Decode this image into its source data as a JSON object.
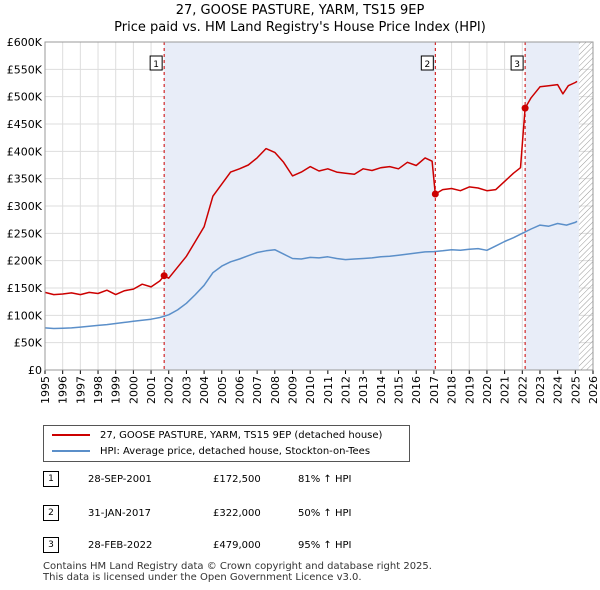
{
  "chart_data": {
    "type": "line",
    "title": "27, GOOSE PASTURE, YARM, TS15 9EP",
    "subtitle": "Price paid vs. HM Land Registry's House Price Index (HPI)",
    "xlim": [
      1995,
      2026
    ],
    "ylim": [
      0,
      600000
    ],
    "x_ticks": [
      1995,
      1996,
      1997,
      1998,
      1999,
      2000,
      2001,
      2002,
      2003,
      2004,
      2005,
      2006,
      2007,
      2008,
      2009,
      2010,
      2011,
      2012,
      2013,
      2014,
      2015,
      2016,
      2017,
      2018,
      2019,
      2020,
      2021,
      2022,
      2023,
      2024,
      2025,
      2026
    ],
    "x_tick_labels": [
      "1995",
      "1996",
      "1997",
      "1998",
      "1999",
      "2000",
      "2001",
      "2002",
      "2003",
      "2004",
      "2005",
      "2006",
      "2007",
      "2008",
      "2009",
      "2010",
      "2011",
      "2012",
      "2013",
      "2014",
      "2015",
      "2016",
      "2017",
      "2018",
      "2019",
      "2020",
      "2021",
      "2022",
      "2023",
      "2024",
      "2025",
      "2026"
    ],
    "y_ticks": [
      0,
      50000,
      100000,
      150000,
      200000,
      250000,
      300000,
      350000,
      400000,
      450000,
      500000,
      550000,
      600000
    ],
    "y_tick_labels": [
      "£0",
      "£50K",
      "£100K",
      "£150K",
      "£200K",
      "£250K",
      "£300K",
      "£350K",
      "£400K",
      "£450K",
      "£500K",
      "£550K",
      "£600K"
    ],
    "shaded_ranges": [
      [
        2001.74,
        2017.08
      ],
      [
        2022.16,
        2025.2
      ]
    ],
    "hatch_from": 2025.2,
    "series": [
      {
        "name": "27, GOOSE PASTURE, YARM, TS15 9EP (detached house)",
        "color": "#cc0000",
        "x": [
          1995,
          1995.5,
          1996,
          1996.5,
          1997,
          1997.5,
          1998,
          1998.5,
          1999,
          1999.5,
          2000,
          2000.5,
          2001,
          2001.5,
          2001.74,
          2002,
          2002.5,
          2003,
          2003.5,
          2004,
          2004.5,
          2005,
          2005.5,
          2006,
          2006.5,
          2007,
          2007.5,
          2008,
          2008.5,
          2009,
          2009.5,
          2010,
          2010.5,
          2011,
          2011.5,
          2012,
          2012.5,
          2013,
          2013.5,
          2014,
          2014.5,
          2015,
          2015.5,
          2016,
          2016.5,
          2016.9,
          2017.08,
          2017.5,
          2018,
          2018.5,
          2019,
          2019.5,
          2020,
          2020.5,
          2021,
          2021.5,
          2021.9,
          2022.16,
          2022.5,
          2023,
          2023.5,
          2024,
          2024.3,
          2024.6,
          2025,
          2025.1
        ],
        "values": [
          142000,
          138000,
          139000,
          141000,
          138000,
          142000,
          140000,
          146000,
          138000,
          145000,
          148000,
          157000,
          152000,
          163000,
          172500,
          168000,
          188000,
          208000,
          235000,
          262000,
          318000,
          340000,
          362000,
          368000,
          375000,
          388000,
          405000,
          398000,
          380000,
          355000,
          362000,
          372000,
          364000,
          368000,
          362000,
          360000,
          358000,
          368000,
          365000,
          370000,
          372000,
          368000,
          380000,
          374000,
          388000,
          382000,
          322000,
          330000,
          332000,
          328000,
          335000,
          333000,
          328000,
          330000,
          345000,
          360000,
          370000,
          479000,
          498000,
          518000,
          520000,
          522000,
          505000,
          520000,
          526000,
          528000
        ]
      },
      {
        "name": "HPI: Average price, detached house, Stockton-on-Tees",
        "color": "#5b8fc9",
        "x": [
          1995,
          1995.5,
          1996,
          1996.5,
          1997,
          1997.5,
          1998,
          1998.5,
          1999,
          1999.5,
          2000,
          2000.5,
          2001,
          2001.5,
          2002,
          2002.5,
          2003,
          2003.5,
          2004,
          2004.5,
          2005,
          2005.5,
          2006,
          2006.5,
          2007,
          2007.5,
          2008,
          2008.5,
          2009,
          2009.5,
          2010,
          2010.5,
          2011,
          2011.5,
          2012,
          2012.5,
          2013,
          2013.5,
          2014,
          2014.5,
          2015,
          2015.5,
          2016,
          2016.5,
          2017,
          2017.5,
          2018,
          2018.5,
          2019,
          2019.5,
          2020,
          2020.5,
          2021,
          2021.5,
          2022,
          2022.5,
          2023,
          2023.5,
          2024,
          2024.5,
          2025,
          2025.1
        ],
        "values": [
          77000,
          76000,
          76500,
          77000,
          78500,
          80000,
          81500,
          83000,
          85000,
          87000,
          89000,
          91000,
          93000,
          96000,
          101000,
          110000,
          122000,
          138000,
          155000,
          178000,
          190000,
          198000,
          203000,
          209000,
          215000,
          218000,
          220000,
          212000,
          204000,
          203000,
          206000,
          205000,
          207000,
          204000,
          202000,
          203000,
          204000,
          205000,
          207000,
          208000,
          210000,
          212000,
          214000,
          216000,
          216500,
          218000,
          220000,
          219000,
          221000,
          222000,
          219000,
          227000,
          235000,
          242000,
          250000,
          258000,
          265000,
          263000,
          268000,
          265000,
          270000,
          272000
        ]
      }
    ],
    "sales": [
      {
        "label": "1",
        "x": 2001.74,
        "value": 172500
      },
      {
        "label": "2",
        "x": 2017.08,
        "value": 322000
      },
      {
        "label": "3",
        "x": 2022.16,
        "value": 479000
      }
    ]
  },
  "legend": {
    "property": "27, GOOSE PASTURE, YARM, TS15 9EP (detached house)",
    "hpi": "HPI: Average price, detached house, Stockton-on-Tees"
  },
  "transactions": [
    {
      "num": "1",
      "date": "28-SEP-2001",
      "price": "£172,500",
      "hpi": "81% ↑ HPI"
    },
    {
      "num": "2",
      "date": "31-JAN-2017",
      "price": "£322,000",
      "hpi": "50% ↑ HPI"
    },
    {
      "num": "3",
      "date": "28-FEB-2022",
      "price": "£479,000",
      "hpi": "95% ↑ HPI"
    }
  ],
  "footer": {
    "line1": "Contains HM Land Registry data © Crown copyright and database right 2025.",
    "line2": "This data is licensed under the Open Government Licence v3.0."
  }
}
